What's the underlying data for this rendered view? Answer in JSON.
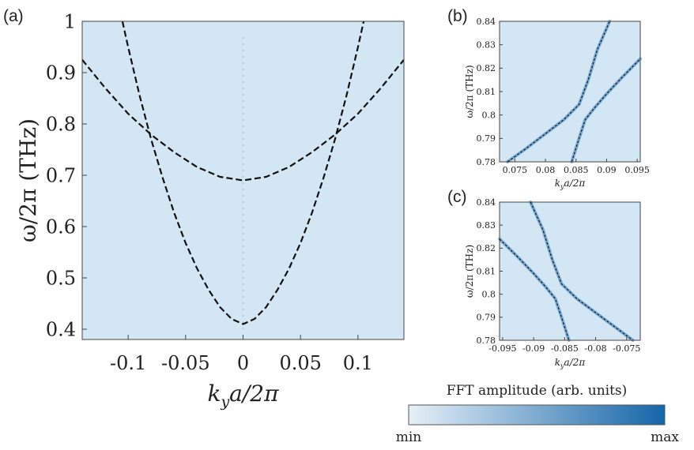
{
  "colors": {
    "heatmap_bg": "#d3e6f3",
    "curve": "#111111",
    "colorbar_min": "#e6f0f8",
    "colorbar_max": "#1565a8",
    "bright_trace": "#2f78b8"
  },
  "panel_labels": {
    "a": "(a)",
    "b": "(b)",
    "c": "(c)"
  },
  "colorbar": {
    "title": "FFT amplitude (arb. units)",
    "min_label": "min",
    "max_label": "max"
  },
  "chart_data": [
    {
      "panel": "a",
      "type": "heatmap",
      "xlabel_main": "k",
      "xlabel_sub": "y",
      "xlabel_rest": "a/2π",
      "ylabel": "ω/2π (THz)",
      "xlim": [
        -0.14,
        0.14
      ],
      "ylim": [
        0.38,
        1.0
      ],
      "xticks": [
        -0.1,
        -0.05,
        0,
        0.05,
        0.1
      ],
      "xtick_labels": [
        "-0.1",
        "-0.05",
        "0",
        "0.05",
        "0.1"
      ],
      "yticks": [
        0.4,
        0.5,
        0.6,
        0.7,
        0.8,
        0.9,
        1.0
      ],
      "ytick_labels": [
        "0.4",
        "0.5",
        "0.6",
        "0.7",
        "0.8",
        "0.9",
        "1"
      ],
      "grid": false,
      "series": [
        {
          "style": "dashed",
          "x": [
            -0.14,
            -0.12,
            -0.1,
            -0.08,
            -0.06,
            -0.04,
            -0.02,
            0,
            0.02,
            0.04,
            0.06,
            0.08,
            0.1,
            0.12,
            0.14
          ],
          "y": [
            0.925,
            0.87,
            0.82,
            0.779,
            0.745,
            0.716,
            0.697,
            0.69,
            0.697,
            0.716,
            0.745,
            0.779,
            0.82,
            0.87,
            0.925
          ]
        },
        {
          "style": "dashed",
          "x": [
            -0.105,
            -0.1,
            -0.09,
            -0.08,
            -0.07,
            -0.06,
            -0.05,
            -0.04,
            -0.03,
            -0.02,
            -0.01,
            0,
            0.01,
            0.02,
            0.03,
            0.04,
            0.05,
            0.06,
            0.07,
            0.08,
            0.09,
            0.1,
            0.105
          ],
          "y": [
            1.0,
            0.95,
            0.855,
            0.77,
            0.695,
            0.627,
            0.568,
            0.518,
            0.477,
            0.443,
            0.42,
            0.41,
            0.42,
            0.443,
            0.477,
            0.518,
            0.568,
            0.627,
            0.695,
            0.77,
            0.855,
            0.95,
            1.0
          ]
        }
      ]
    },
    {
      "panel": "b",
      "type": "heatmap",
      "xlabel_main": "k",
      "xlabel_sub": "y",
      "xlabel_rest": "a/2π",
      "ylabel": "ω/2π (THz)",
      "xlim": [
        0.0725,
        0.0955
      ],
      "ylim": [
        0.78,
        0.84
      ],
      "xticks": [
        0.075,
        0.08,
        0.085,
        0.09,
        0.095
      ],
      "xtick_labels": [
        "0.075",
        "0.08",
        "0.085",
        "0.09",
        "0.095"
      ],
      "yticks": [
        0.78,
        0.79,
        0.8,
        0.81,
        0.82,
        0.83,
        0.84
      ],
      "ytick_labels": [
        "0.78",
        "0.79",
        "0.8",
        "0.81",
        "0.82",
        "0.83",
        "0.84"
      ],
      "grid": false,
      "series": [
        {
          "style": "dashed",
          "x": [
            0.0738,
            0.077,
            0.08,
            0.083,
            0.0855,
            0.087,
            0.0885,
            0.0905
          ],
          "y": [
            0.78,
            0.786,
            0.792,
            0.798,
            0.8045,
            0.815,
            0.828,
            0.84
          ]
        },
        {
          "style": "dashed",
          "x": [
            0.0843,
            0.0855,
            0.0865,
            0.088,
            0.09,
            0.0925,
            0.0955
          ],
          "y": [
            0.78,
            0.79,
            0.798,
            0.803,
            0.809,
            0.816,
            0.824
          ]
        }
      ]
    },
    {
      "panel": "c",
      "type": "heatmap",
      "xlabel_main": "k",
      "xlabel_sub": "y",
      "xlabel_rest": "a/2π",
      "ylabel": "ω/2π (THz)",
      "xlim": [
        -0.0955,
        -0.0728
      ],
      "ylim": [
        0.78,
        0.84
      ],
      "xticks": [
        -0.095,
        -0.09,
        -0.085,
        -0.08,
        -0.075
      ],
      "xtick_labels": [
        "-0.095",
        "-0.09",
        "-0.085",
        "-0.08",
        "-0.075"
      ],
      "yticks": [
        0.78,
        0.79,
        0.8,
        0.81,
        0.82,
        0.83,
        0.84
      ],
      "ytick_labels": [
        "0.78",
        "0.79",
        "0.8",
        "0.81",
        "0.82",
        "0.83",
        "0.84"
      ],
      "grid": false,
      "series": [
        {
          "style": "dashed",
          "x": [
            -0.0955,
            -0.0925,
            -0.09,
            -0.088,
            -0.0865,
            -0.0855,
            -0.0843
          ],
          "y": [
            0.824,
            0.816,
            0.809,
            0.803,
            0.798,
            0.79,
            0.78
          ]
        },
        {
          "style": "dashed",
          "x": [
            -0.0905,
            -0.0885,
            -0.087,
            -0.0855,
            -0.083,
            -0.08,
            -0.077,
            -0.074
          ],
          "y": [
            0.84,
            0.828,
            0.815,
            0.8045,
            0.798,
            0.792,
            0.786,
            0.78
          ]
        }
      ]
    }
  ]
}
